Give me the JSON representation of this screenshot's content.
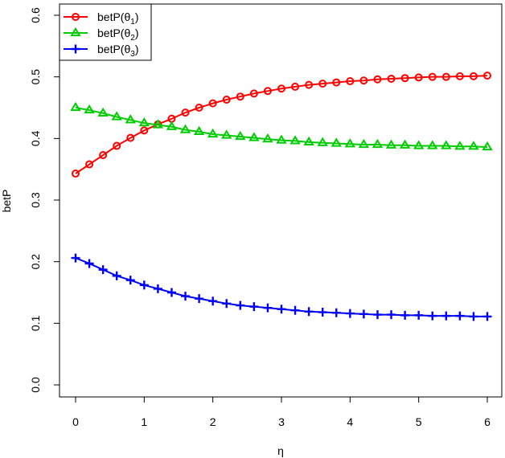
{
  "chart_data": {
    "type": "line",
    "title": "",
    "xlabel": "η",
    "ylabel": "betP",
    "xlim": [
      0,
      6
    ],
    "ylim": [
      0,
      0.6
    ],
    "xticks": [
      "0",
      "1",
      "2",
      "3",
      "4",
      "5",
      "6"
    ],
    "yticks": [
      "0.0",
      "0.1",
      "0.2",
      "0.3",
      "0.4",
      "0.5",
      "0.6"
    ],
    "grid": false,
    "legend_position": "top-left",
    "x": [
      0,
      0.2,
      0.4,
      0.6,
      0.8,
      1.0,
      1.2,
      1.4,
      1.6,
      1.8,
      2.0,
      2.2,
      2.4,
      2.6,
      2.8,
      3.0,
      3.2,
      3.4,
      3.6,
      3.8,
      4.0,
      4.2,
      4.4,
      4.6,
      4.8,
      5.0,
      5.2,
      5.4,
      5.6,
      5.8,
      6.0
    ],
    "series": [
      {
        "name": "betP(θ1)",
        "legend_main": "betP(θ",
        "legend_sub": "1",
        "legend_close": ")",
        "color": "#ff0000",
        "marker": "circle",
        "values": [
          0.343,
          0.358,
          0.373,
          0.388,
          0.401,
          0.413,
          0.423,
          0.432,
          0.442,
          0.45,
          0.457,
          0.463,
          0.468,
          0.473,
          0.477,
          0.481,
          0.484,
          0.487,
          0.489,
          0.491,
          0.493,
          0.494,
          0.496,
          0.497,
          0.498,
          0.499,
          0.5,
          0.5,
          0.501,
          0.501,
          0.502
        ]
      },
      {
        "name": "betP(θ2)",
        "legend_main": "betP(θ",
        "legend_sub": "2",
        "legend_close": ")",
        "color": "#00cd00",
        "marker": "triangle",
        "values": [
          0.45,
          0.446,
          0.441,
          0.435,
          0.43,
          0.425,
          0.422,
          0.419,
          0.414,
          0.411,
          0.407,
          0.405,
          0.403,
          0.401,
          0.399,
          0.397,
          0.396,
          0.394,
          0.393,
          0.392,
          0.391,
          0.39,
          0.39,
          0.389,
          0.389,
          0.388,
          0.388,
          0.388,
          0.387,
          0.387,
          0.386
        ]
      },
      {
        "name": "betP(θ3)",
        "legend_main": "betP(θ",
        "legend_sub": "3",
        "legend_close": ")",
        "color": "#0000ff",
        "marker": "plus",
        "values": [
          0.206,
          0.197,
          0.187,
          0.177,
          0.17,
          0.162,
          0.156,
          0.15,
          0.144,
          0.14,
          0.136,
          0.132,
          0.129,
          0.127,
          0.125,
          0.123,
          0.121,
          0.119,
          0.118,
          0.117,
          0.116,
          0.115,
          0.114,
          0.114,
          0.113,
          0.113,
          0.112,
          0.112,
          0.112,
          0.111,
          0.111
        ]
      }
    ]
  }
}
